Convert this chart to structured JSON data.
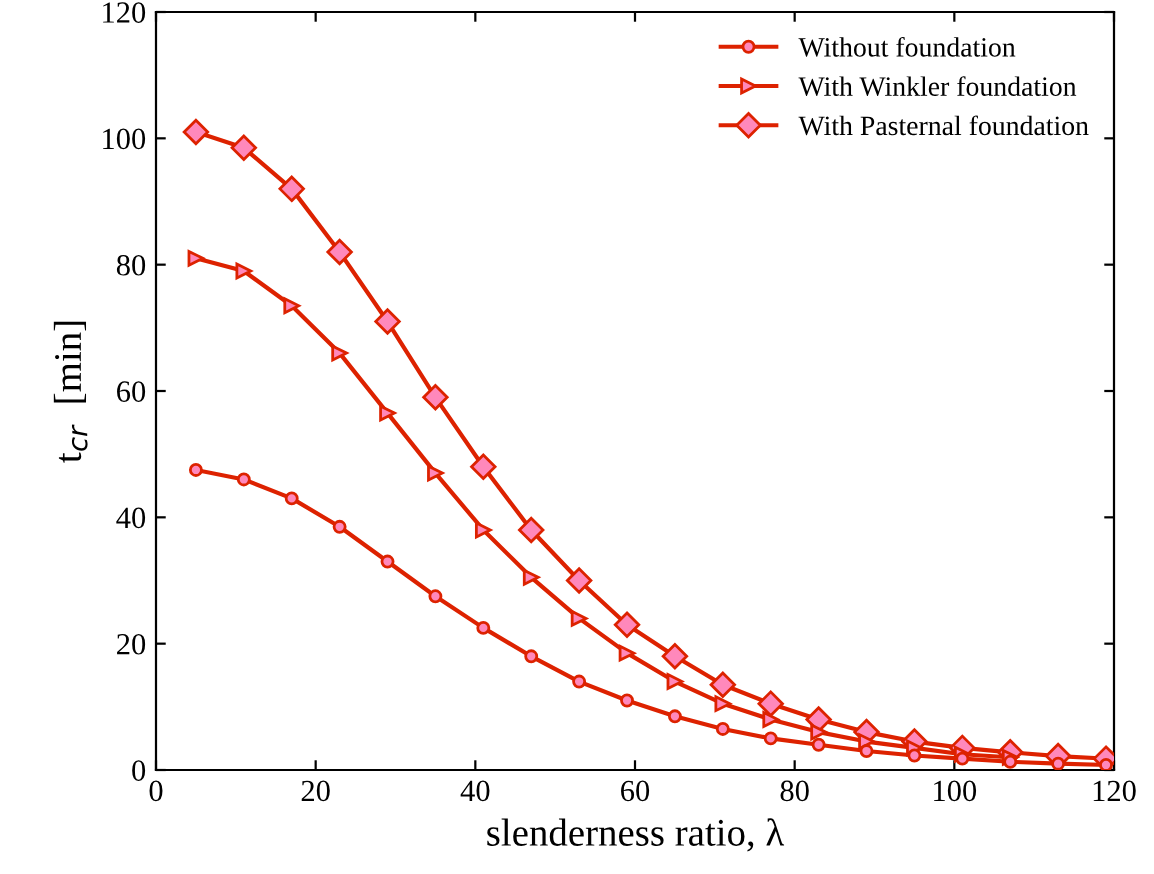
{
  "chart_data": {
    "type": "line",
    "xlabel": "slenderness ratio, λ",
    "ylabel": "t$_{cr}$  [min]",
    "x": [
      5,
      11,
      17,
      23,
      29,
      35,
      41,
      47,
      53,
      59,
      65,
      71,
      77,
      83,
      89,
      95,
      101,
      107,
      113,
      119
    ],
    "series": [
      {
        "name": "Without foundation",
        "color": "#dd2200",
        "marker": "circle",
        "values": [
          47.5,
          46,
          43,
          38.5,
          33,
          27.5,
          22.5,
          18,
          14,
          11,
          8.5,
          6.5,
          5,
          4,
          3,
          2.3,
          1.8,
          1.3,
          1,
          0.8
        ]
      },
      {
        "name": "With Winkler foundation",
        "color": "#dd2200",
        "marker": "triangle",
        "values": [
          81,
          79,
          73.5,
          66,
          56.5,
          47,
          38,
          30.5,
          24,
          18.5,
          14,
          10.5,
          8,
          6,
          4.5,
          3.5,
          2.5,
          2,
          null,
          null
        ]
      },
      {
        "name": "With Pasternal foundation",
        "color": "#dd2200",
        "marker": "diamond",
        "values": [
          101,
          98.5,
          92,
          82,
          71,
          59,
          48,
          38,
          30,
          23,
          18,
          13.5,
          10.5,
          8,
          6,
          4.5,
          3.5,
          2.8,
          2.2,
          1.8
        ]
      }
    ],
    "xlim": [
      0,
      120
    ],
    "xticks": [
      0,
      20,
      40,
      60,
      80,
      100,
      120
    ],
    "ylim": [
      0,
      120
    ],
    "yticks": [
      0,
      20,
      40,
      60,
      80,
      100,
      120
    ],
    "legend": "top right",
    "grid": false
  }
}
